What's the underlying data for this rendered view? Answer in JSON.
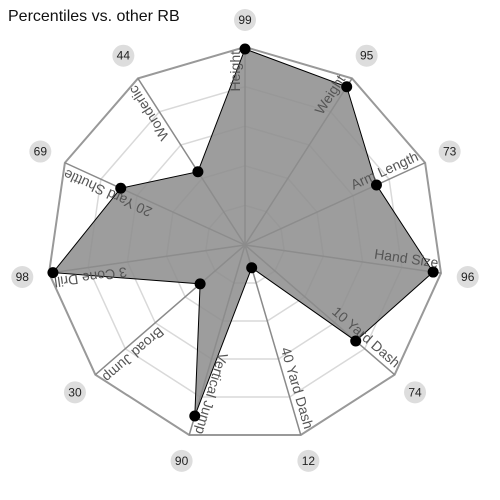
{
  "title": "Percentiles vs. other RB",
  "chart_data": {
    "type": "radar",
    "title": "Percentiles vs. other RB",
    "rlim": [
      0,
      100
    ],
    "rings": [
      20,
      40,
      60,
      80,
      100
    ],
    "series": [
      {
        "values": [
          99,
          95,
          73,
          96,
          74,
          12,
          90,
          30,
          98,
          69,
          44
        ]
      }
    ],
    "categories": [
      "Height",
      "Weight",
      "Arm Length",
      "Hand Size",
      "10 Yard Dash",
      "40 Yard Dash",
      "Vertical Jump",
      "Broad Jump",
      "3 Cone Drill",
      "20 Yard Shuttle",
      "Wonderlic"
    ],
    "colors": {
      "fill": "#8c8c8c",
      "point": "#000000",
      "outer_ring": "#999999",
      "inner_ring": "#d9d9d9",
      "spoke": "#8a8a8a",
      "badge": "#dddddd"
    }
  }
}
